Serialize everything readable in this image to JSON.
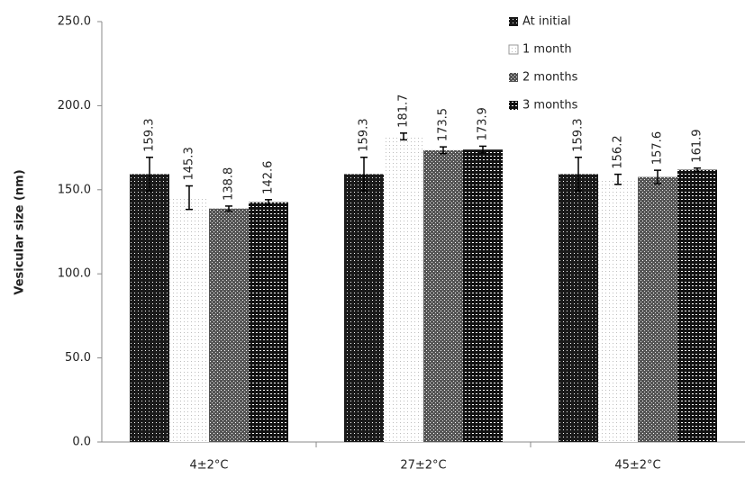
{
  "chart_data": {
    "type": "bar",
    "ylabel": "Vesicular size (nm)",
    "categories": [
      "4±2°C",
      "27±2°C",
      "45±2°C"
    ],
    "series": [
      {
        "name": "At initial",
        "color": "#1a1a1a",
        "values": [
          159.3,
          159.3,
          159.3
        ],
        "errors": [
          10,
          10,
          10
        ]
      },
      {
        "name": "1 month",
        "color": "#bdbdbd",
        "values": [
          145.3,
          181.7,
          156.2
        ],
        "errors": [
          7,
          2,
          3
        ]
      },
      {
        "name": "2 months",
        "color": "#555555",
        "values": [
          138.8,
          173.5,
          157.6
        ],
        "errors": [
          1.5,
          2,
          4
        ]
      },
      {
        "name": "3 months",
        "color": "#111111",
        "values": [
          142.6,
          173.9,
          161.9
        ],
        "errors": [
          1.5,
          2,
          1
        ]
      }
    ],
    "ylim": [
      0,
      250
    ],
    "yticks": [
      {
        "value": 0,
        "label": "0.0"
      },
      {
        "value": 50,
        "label": "50.0"
      },
      {
        "value": 100,
        "label": "100.0"
      },
      {
        "value": 150,
        "label": "150.0"
      },
      {
        "value": 200,
        "label": "200.0"
      },
      {
        "value": 250,
        "label": "250.0"
      }
    ],
    "legend": "top-right",
    "grid": false
  }
}
